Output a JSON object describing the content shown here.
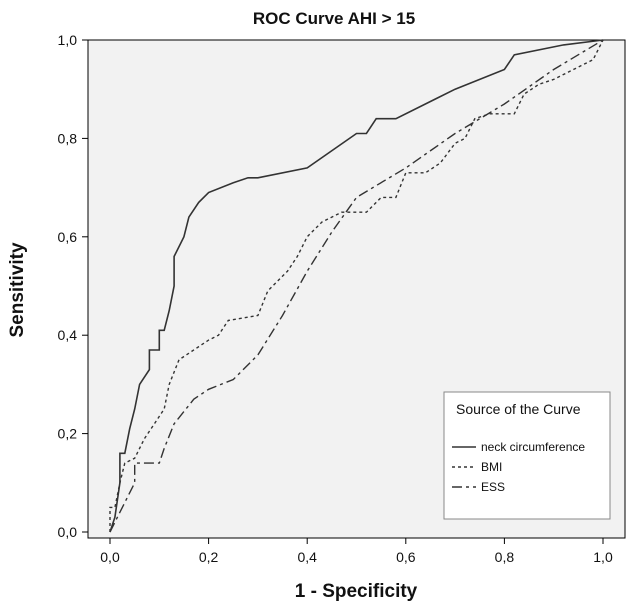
{
  "chart_data": {
    "type": "line",
    "title": "ROC Curve AHI > 15",
    "xlabel": "1 - Specificity",
    "ylabel": "Sensitivity",
    "xlim": [
      0,
      1
    ],
    "ylim": [
      0,
      1
    ],
    "x_ticks": [
      "0,0",
      "0,2",
      "0,4",
      "0,6",
      "0,8",
      "1,0"
    ],
    "y_ticks": [
      "0,0",
      "0,2",
      "0,4",
      "0,6",
      "0,8",
      "1,0"
    ],
    "grid": false,
    "legend": {
      "title": "Source of the Curve",
      "position": "bottom-right"
    },
    "series": [
      {
        "name": "neck circumference",
        "line_style": "solid",
        "points": [
          [
            0,
            0
          ],
          [
            0.01,
            0.03
          ],
          [
            0.02,
            0.1
          ],
          [
            0.02,
            0.16
          ],
          [
            0.03,
            0.16
          ],
          [
            0.04,
            0.21
          ],
          [
            0.05,
            0.25
          ],
          [
            0.06,
            0.3
          ],
          [
            0.08,
            0.33
          ],
          [
            0.08,
            0.37
          ],
          [
            0.1,
            0.37
          ],
          [
            0.1,
            0.41
          ],
          [
            0.11,
            0.41
          ],
          [
            0.12,
            0.45
          ],
          [
            0.13,
            0.5
          ],
          [
            0.13,
            0.56
          ],
          [
            0.15,
            0.6
          ],
          [
            0.16,
            0.64
          ],
          [
            0.18,
            0.67
          ],
          [
            0.2,
            0.69
          ],
          [
            0.25,
            0.71
          ],
          [
            0.28,
            0.72
          ],
          [
            0.3,
            0.72
          ],
          [
            0.4,
            0.74
          ],
          [
            0.5,
            0.81
          ],
          [
            0.52,
            0.81
          ],
          [
            0.54,
            0.84
          ],
          [
            0.56,
            0.84
          ],
          [
            0.58,
            0.84
          ],
          [
            0.66,
            0.88
          ],
          [
            0.7,
            0.9
          ],
          [
            0.8,
            0.94
          ],
          [
            0.82,
            0.97
          ],
          [
            0.92,
            0.99
          ],
          [
            1,
            1
          ]
        ]
      },
      {
        "name": "BMI",
        "line_style": "dotted",
        "points": [
          [
            0,
            0
          ],
          [
            0,
            0.05
          ],
          [
            0.01,
            0.05
          ],
          [
            0.02,
            0.1
          ],
          [
            0.03,
            0.14
          ],
          [
            0.05,
            0.15
          ],
          [
            0.07,
            0.19
          ],
          [
            0.09,
            0.22
          ],
          [
            0.11,
            0.25
          ],
          [
            0.12,
            0.3
          ],
          [
            0.14,
            0.35
          ],
          [
            0.2,
            0.39
          ],
          [
            0.22,
            0.4
          ],
          [
            0.24,
            0.43
          ],
          [
            0.3,
            0.44
          ],
          [
            0.32,
            0.49
          ],
          [
            0.36,
            0.53
          ],
          [
            0.38,
            0.56
          ],
          [
            0.4,
            0.6
          ],
          [
            0.43,
            0.63
          ],
          [
            0.47,
            0.65
          ],
          [
            0.52,
            0.65
          ],
          [
            0.55,
            0.68
          ],
          [
            0.58,
            0.68
          ],
          [
            0.6,
            0.73
          ],
          [
            0.64,
            0.73
          ],
          [
            0.67,
            0.75
          ],
          [
            0.7,
            0.79
          ],
          [
            0.72,
            0.8
          ],
          [
            0.74,
            0.84
          ],
          [
            0.77,
            0.85
          ],
          [
            0.82,
            0.85
          ],
          [
            0.84,
            0.89
          ],
          [
            0.87,
            0.91
          ],
          [
            0.9,
            0.92
          ],
          [
            0.94,
            0.94
          ],
          [
            0.98,
            0.96
          ],
          [
            1,
            1
          ]
        ]
      },
      {
        "name": "ESS",
        "line_style": "dashed",
        "points": [
          [
            0,
            0
          ],
          [
            0.03,
            0.06
          ],
          [
            0.05,
            0.1
          ],
          [
            0.05,
            0.14
          ],
          [
            0.1,
            0.14
          ],
          [
            0.11,
            0.17
          ],
          [
            0.13,
            0.22
          ],
          [
            0.17,
            0.27
          ],
          [
            0.2,
            0.29
          ],
          [
            0.25,
            0.31
          ],
          [
            0.3,
            0.36
          ],
          [
            0.35,
            0.44
          ],
          [
            0.4,
            0.53
          ],
          [
            0.45,
            0.61
          ],
          [
            0.5,
            0.68
          ],
          [
            0.6,
            0.74
          ],
          [
            0.7,
            0.81
          ],
          [
            0.8,
            0.87
          ],
          [
            0.9,
            0.94
          ],
          [
            1,
            1
          ]
        ]
      }
    ]
  }
}
